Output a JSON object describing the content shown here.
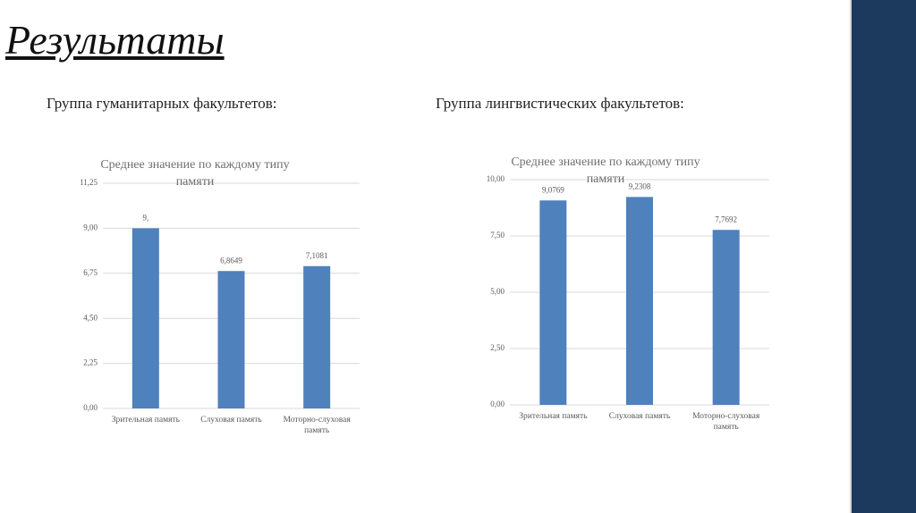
{
  "title": "Результаты",
  "chart_data": [
    {
      "type": "bar",
      "heading": "Группа гуманитарных факультетов:",
      "title": "Среднее значение по каждому типу памяти",
      "categories": [
        "Зрительная память",
        "Слуховая память",
        "Моторно-слуховая память"
      ],
      "values": [
        9,
        6.8649,
        7.1081
      ],
      "value_labels": [
        "9,",
        "6,8649",
        "7,1081"
      ],
      "color": "#4f81bd",
      "ylim": [
        0,
        11.25
      ],
      "yticks": [
        {
          "value": 0,
          "label": "0,00"
        },
        {
          "value": 2.25,
          "label": "2,25"
        },
        {
          "value": 4.5,
          "label": "4,50"
        },
        {
          "value": 6.75,
          "label": "6,75"
        },
        {
          "value": 9,
          "label": "9,00"
        },
        {
          "value": 11.25,
          "label": "11,25"
        }
      ],
      "grid": true
    },
    {
      "type": "bar",
      "heading": "Группа лингвистических факультетов:",
      "title": "Среднее значение по каждому типу памяти",
      "categories": [
        "Зрительная память",
        "Слуховая память",
        "Моторно-слуховая память"
      ],
      "values": [
        9.0769,
        9.2308,
        7.7692
      ],
      "value_labels": [
        "9,0769",
        "9,2308",
        "7,7692"
      ],
      "color": "#4f81bd",
      "ylim": [
        0,
        10
      ],
      "yticks": [
        {
          "value": 0,
          "label": "0,00"
        },
        {
          "value": 2.5,
          "label": "2,50"
        },
        {
          "value": 5,
          "label": "5,00"
        },
        {
          "value": 7.5,
          "label": "7,50"
        },
        {
          "value": 10,
          "label": "10,00"
        }
      ],
      "grid": true
    }
  ]
}
